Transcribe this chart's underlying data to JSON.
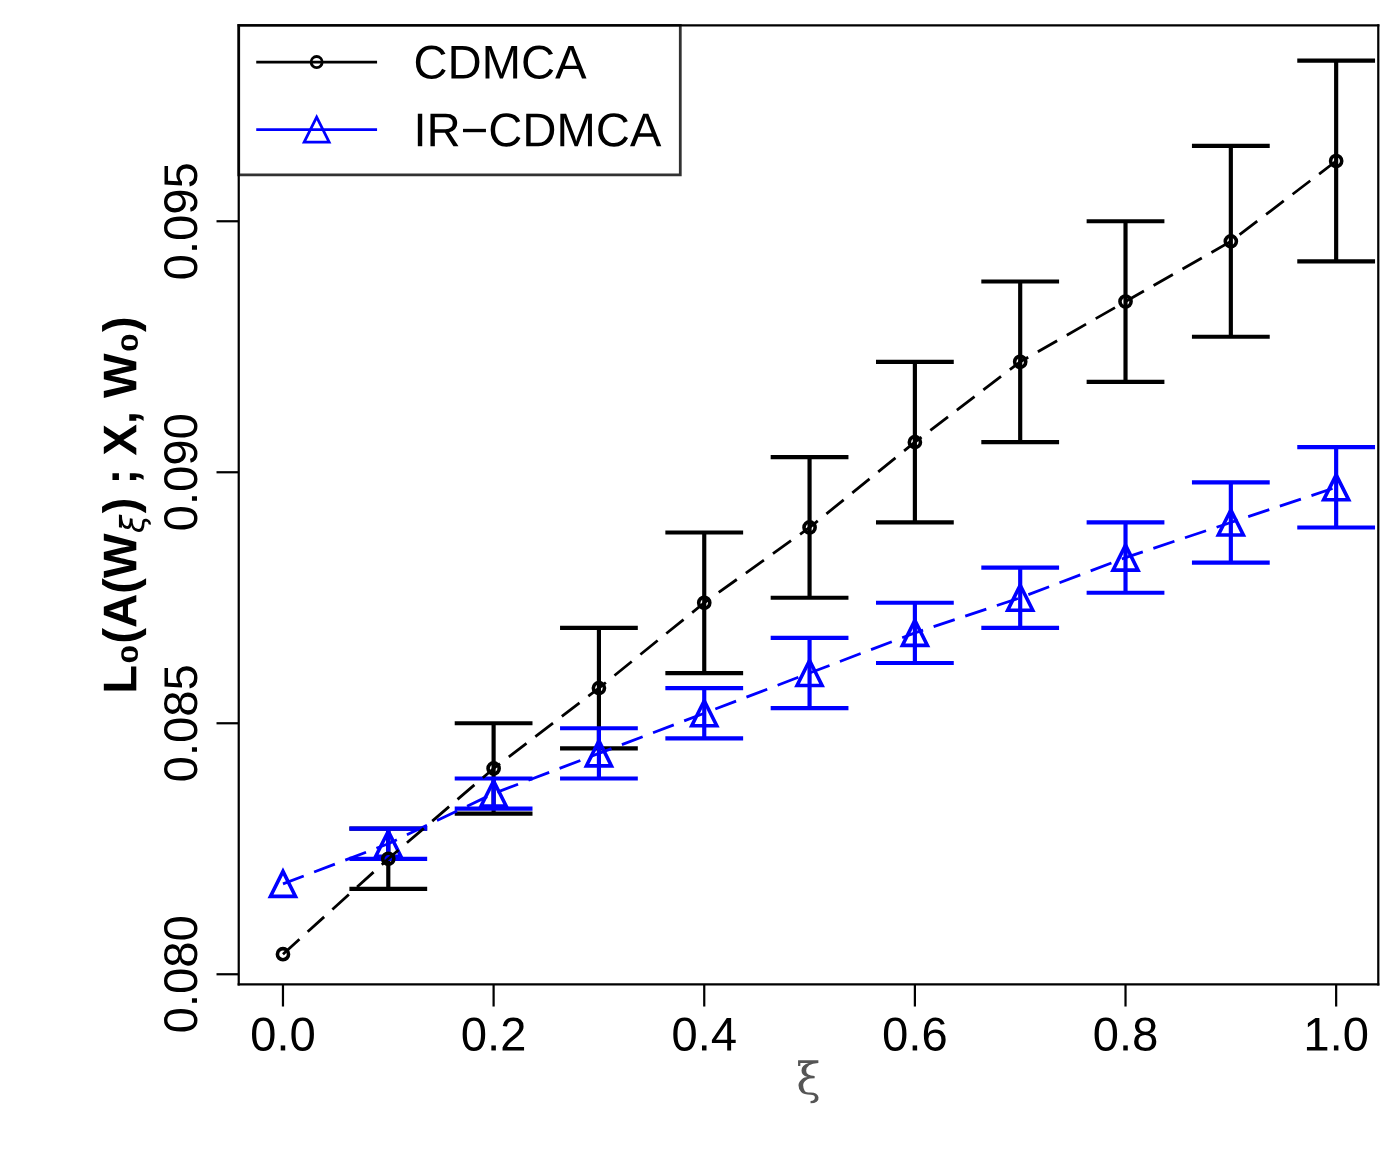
{
  "chart_data": {
    "type": "line",
    "xlabel": "ξ",
    "ylabel": "L₀(A(W$_{ξ}$) ; X, W₀)",
    "x": [
      0.0,
      0.1,
      0.2,
      0.3,
      0.4,
      0.5,
      0.6,
      0.7,
      0.8,
      0.9,
      1.0
    ],
    "series": [
      {
        "name": "CDMCA",
        "color": "#000000",
        "marker": "circle",
        "values": [
          0.0804,
          0.0823,
          0.0841,
          0.0857,
          0.0874,
          0.0889,
          0.0906,
          0.0922,
          0.0934,
          0.0946,
          0.0962
        ],
        "errors": [
          null,
          0.0006,
          0.0009,
          0.0012,
          0.0014,
          0.0014,
          0.0016,
          0.0016,
          0.0016,
          0.0019,
          0.002
        ]
      },
      {
        "name": "IR−CDMCA",
        "color": "#0000ff",
        "marker": "triangle",
        "values": [
          0.0818,
          0.0826,
          0.0836,
          0.0844,
          0.0852,
          0.086,
          0.0868,
          0.0875,
          0.0883,
          0.089,
          0.0897
        ],
        "errors": [
          null,
          0.0003,
          0.0003,
          0.0005,
          0.0005,
          0.0007,
          0.0006,
          0.0006,
          0.0007,
          0.0008,
          0.0008
        ]
      }
    ],
    "xlim": [
      -0.042,
      1.04
    ],
    "ylim": [
      0.0798,
      0.0989
    ],
    "xticks": [
      {
        "value": 0,
        "label": "0.0"
      },
      0.2,
      0.4,
      0.6,
      0.8,
      {
        "value": 1,
        "label": "1.0"
      }
    ],
    "yticks": [
      {
        "value": 0.08,
        "label": "0.080"
      },
      0.085,
      {
        "value": 0.09,
        "label": "0.090"
      },
      0.095
    ],
    "line_style": "dashed",
    "legend": "top left",
    "grid": false
  }
}
